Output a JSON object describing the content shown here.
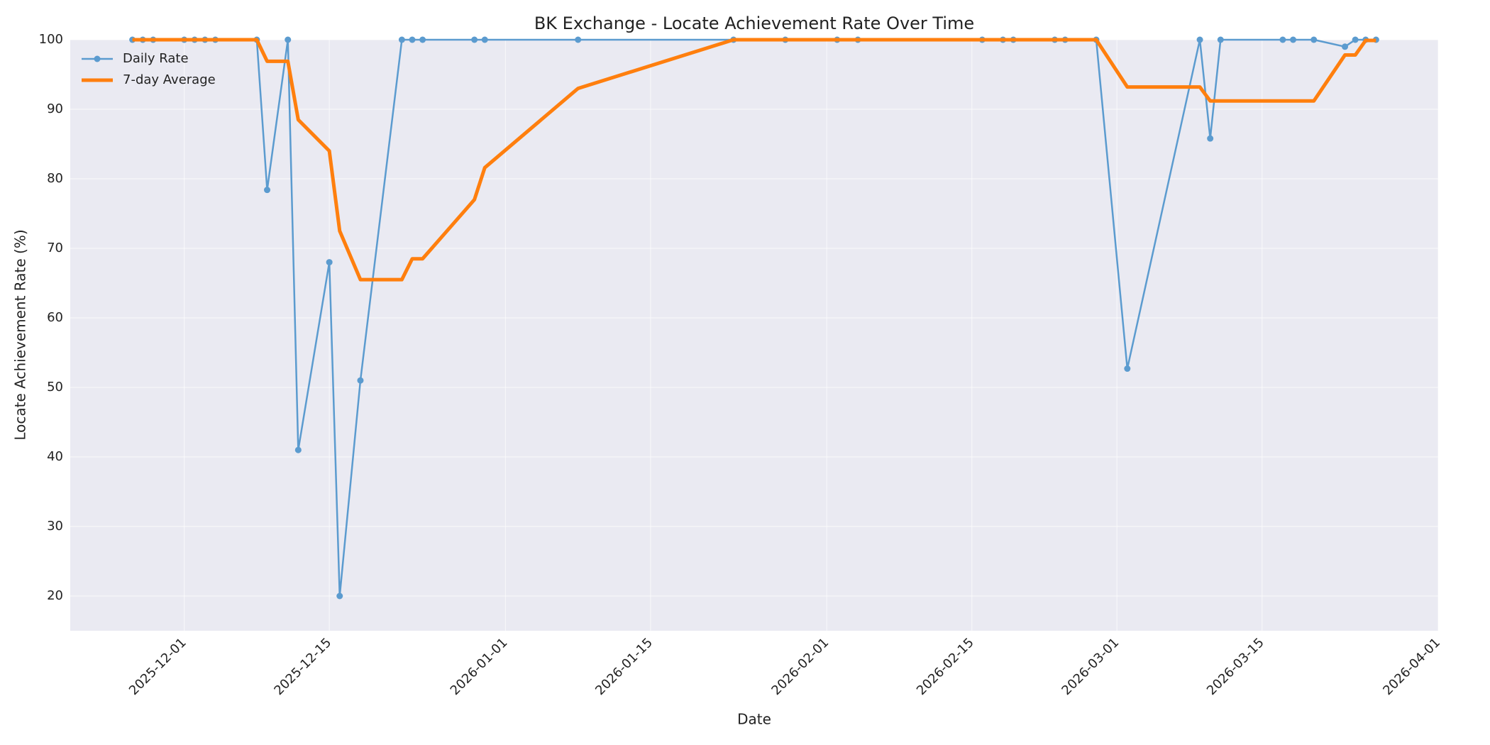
{
  "chart_data": {
    "type": "line",
    "title": "BK Exchange - Locate Achievement Rate Over Time",
    "x_label": "Date",
    "y_label": "Locate Achievement Rate (%)",
    "x": [
      "2025-11-26",
      "2025-11-27",
      "2025-11-28",
      "2025-12-01",
      "2025-12-02",
      "2025-12-03",
      "2025-12-04",
      "2025-12-08",
      "2025-12-09",
      "2025-12-11",
      "2025-12-12",
      "2025-12-15",
      "2025-12-16",
      "2025-12-18",
      "2025-12-22",
      "2025-12-23",
      "2025-12-24",
      "2025-12-29",
      "2025-12-30",
      "2026-01-08",
      "2026-01-23",
      "2026-01-28",
      "2026-02-02",
      "2026-02-04",
      "2026-02-16",
      "2026-02-18",
      "2026-02-19",
      "2026-02-23",
      "2026-02-24",
      "2026-02-27",
      "2026-03-02",
      "2026-03-09",
      "2026-03-10",
      "2026-03-11",
      "2026-03-17",
      "2026-03-18",
      "2026-03-20",
      "2026-03-23",
      "2026-03-24",
      "2026-03-25",
      "2026-03-26"
    ],
    "series": [
      {
        "name": "Daily Rate",
        "color": "#5b9bcf",
        "markers": true,
        "line_width": 2.5,
        "values": [
          100,
          100,
          100,
          100,
          100,
          100,
          100,
          100,
          78.4,
          100,
          41,
          68,
          20,
          51,
          100,
          100,
          100,
          100,
          100,
          100,
          100,
          100,
          100,
          100,
          100,
          100,
          100,
          100,
          100,
          100,
          52.7,
          100,
          85.8,
          100,
          100,
          100,
          100,
          99,
          100,
          100,
          100
        ]
      },
      {
        "name": "7-day Average",
        "color": "#ff7f0e",
        "markers": false,
        "line_width": 5,
        "values": [
          100,
          100,
          100,
          100,
          100,
          100,
          100,
          100,
          96.9,
          96.9,
          88.5,
          84,
          72.5,
          65.5,
          65.5,
          68.5,
          68.5,
          77,
          81.6,
          93,
          100,
          100,
          100,
          100,
          100,
          100,
          100,
          100,
          100,
          100,
          93.2,
          93.2,
          91.2,
          91.2,
          91.2,
          91.2,
          91.2,
          97.8,
          97.8,
          99.9,
          99.9
        ]
      }
    ],
    "xlim": [
      "2025-11-20",
      "2026-04-01"
    ],
    "xticks": [
      "2025-12-01",
      "2025-12-15",
      "2026-01-01",
      "2026-01-15",
      "2026-02-01",
      "2026-02-15",
      "2026-03-01",
      "2026-03-15",
      "2026-04-01"
    ],
    "ylim": [
      15,
      100
    ],
    "yticks": [
      20,
      30,
      40,
      50,
      60,
      70,
      80,
      90,
      100
    ],
    "grid": true,
    "legend": "upper-left"
  }
}
